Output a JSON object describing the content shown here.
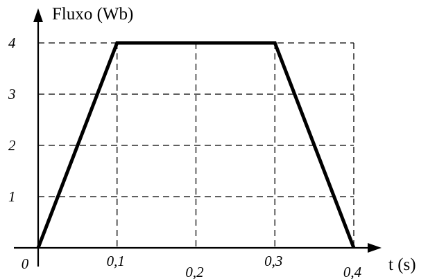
{
  "chart_data": {
    "type": "line",
    "title": "",
    "xlabel": "t (s)",
    "ylabel": "Fluxo (Wb)",
    "xlim": [
      0,
      0.4
    ],
    "ylim": [
      0,
      4
    ],
    "grid": true,
    "x_ticks": [
      {
        "value": 0,
        "label": "0"
      },
      {
        "value": 0.1,
        "label": "0,1"
      },
      {
        "value": 0.2,
        "label": "0,2"
      },
      {
        "value": 0.3,
        "label": "0,3"
      },
      {
        "value": 0.4,
        "label": "0,4"
      }
    ],
    "y_ticks": [
      {
        "value": 1,
        "label": "1"
      },
      {
        "value": 2,
        "label": "2"
      },
      {
        "value": 3,
        "label": "3"
      },
      {
        "value": 4,
        "label": "4"
      }
    ],
    "series": [
      {
        "x": [
          0,
          0.1,
          0.3,
          0.4
        ],
        "y": [
          0,
          4,
          4,
          0
        ]
      }
    ]
  }
}
